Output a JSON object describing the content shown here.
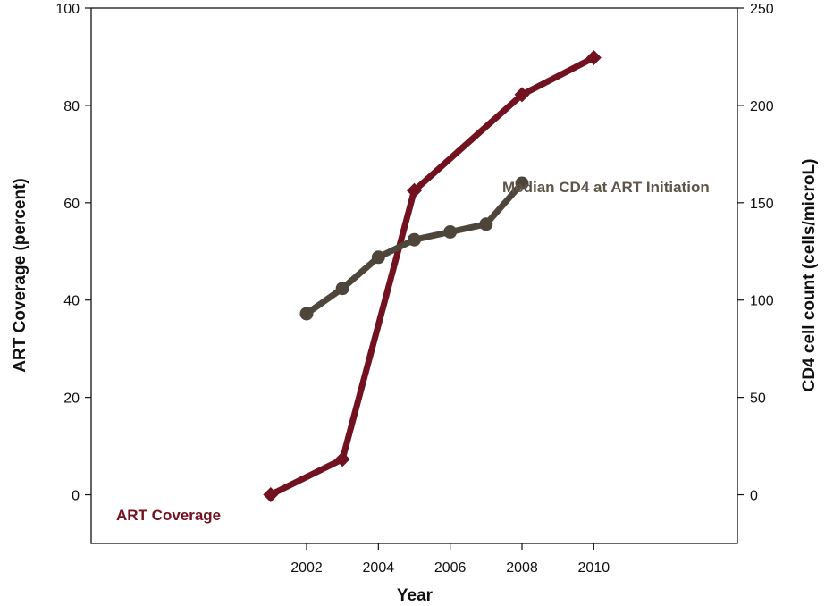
{
  "chart_data": {
    "type": "line",
    "title": "",
    "xlabel": "Year",
    "ylabel": "ART Coverage (percent)",
    "y2label": "CD4 cell count (cells/microL)",
    "xlim": [
      1996,
      2014
    ],
    "x_ticks": [
      2002,
      2004,
      2006,
      2008,
      2010
    ],
    "ylim": [
      -10,
      100
    ],
    "y_ticks": [
      0,
      20,
      40,
      60,
      80,
      100
    ],
    "y2lim": [
      -25,
      250
    ],
    "y2_ticks": [
      0,
      50,
      100,
      150,
      200,
      250
    ],
    "grid": false,
    "series": [
      {
        "name": "ART Coverage",
        "axis": "left",
        "color": "#72111f",
        "marker": "diamond",
        "x": [
          2001,
          2003,
          2005,
          2008,
          2010
        ],
        "y": [
          0,
          7.3,
          62.5,
          82.2,
          89.8
        ]
      },
      {
        "name": "Median CD4 at ART Initiation",
        "axis": "right",
        "color": "#4f463b",
        "marker": "circle",
        "x": [
          2002,
          2003,
          2004,
          2005,
          2006,
          2007,
          2008
        ],
        "y": [
          93,
          106,
          122,
          131,
          135,
          139,
          160
        ]
      }
    ]
  }
}
